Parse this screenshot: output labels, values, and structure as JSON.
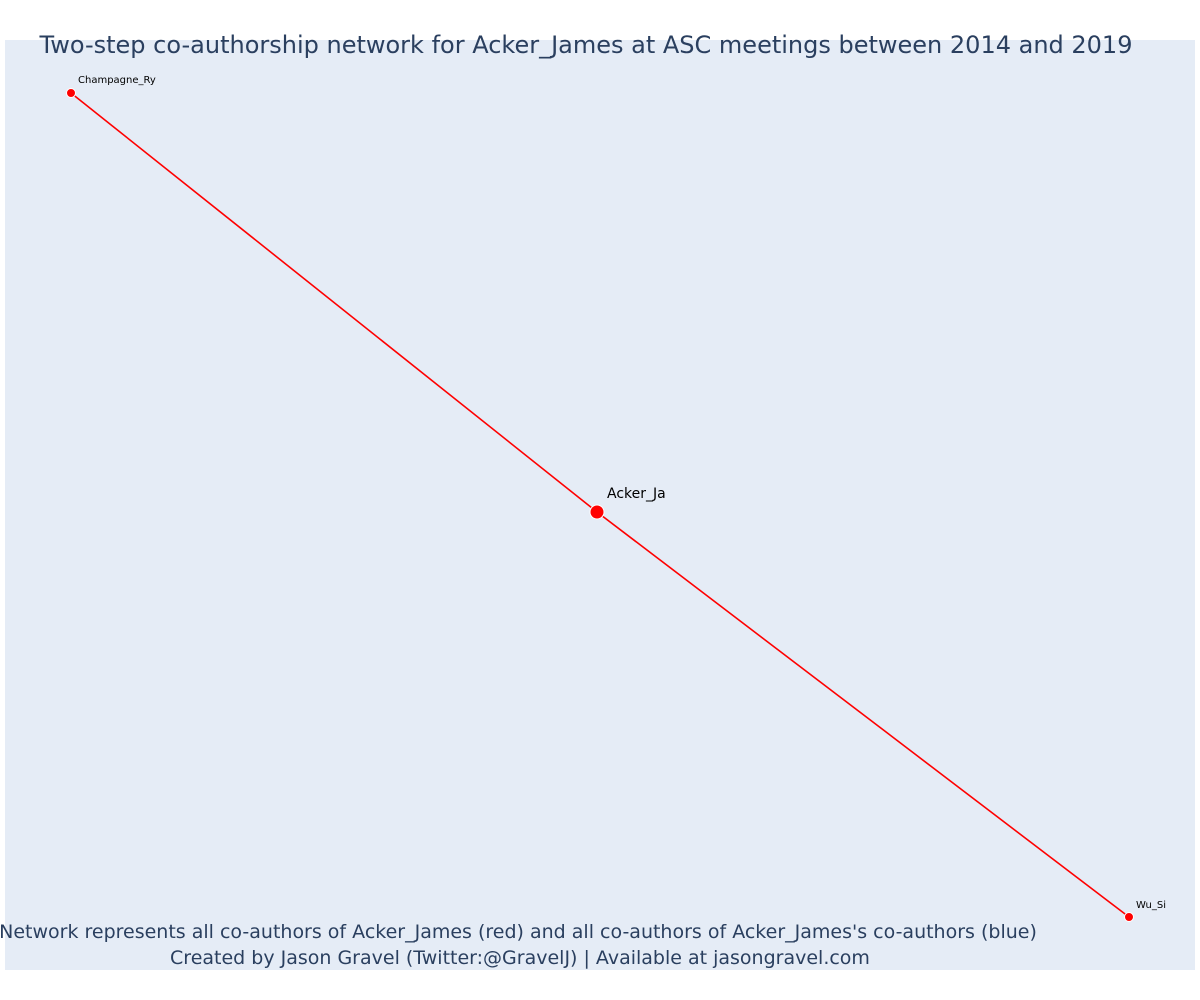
{
  "title": "Two-step co-authorship network for Acker_James at ASC meetings between 2014 and 2019",
  "footnote": {
    "line1": "Network represents all co-authors of Acker_James (red) and all co-authors of Acker_James's co-authors (blue)",
    "line2": "Created by Jason Gravel (Twitter:@GravelJ) | Available at jasongravel.com"
  },
  "colors": {
    "focal_author": "#ff0000",
    "edge": "#ff0000",
    "background": "#e5ecf6"
  },
  "chart_data": {
    "type": "network",
    "focal_author": "Acker_James",
    "nodes": [
      {
        "id": "Acker_Ja",
        "label": "Acker_Ja",
        "group": "focal"
      },
      {
        "id": "Champagne_Ry",
        "label": "Champagne_Ry",
        "group": "co-author"
      },
      {
        "id": "Wu_Si",
        "label": "Wu_Si",
        "group": "co-author"
      }
    ],
    "edges": [
      {
        "source": "Acker_Ja",
        "target": "Champagne_Ry"
      },
      {
        "source": "Acker_Ja",
        "target": "Wu_Si"
      }
    ],
    "grid": false,
    "axes_visible": false
  }
}
